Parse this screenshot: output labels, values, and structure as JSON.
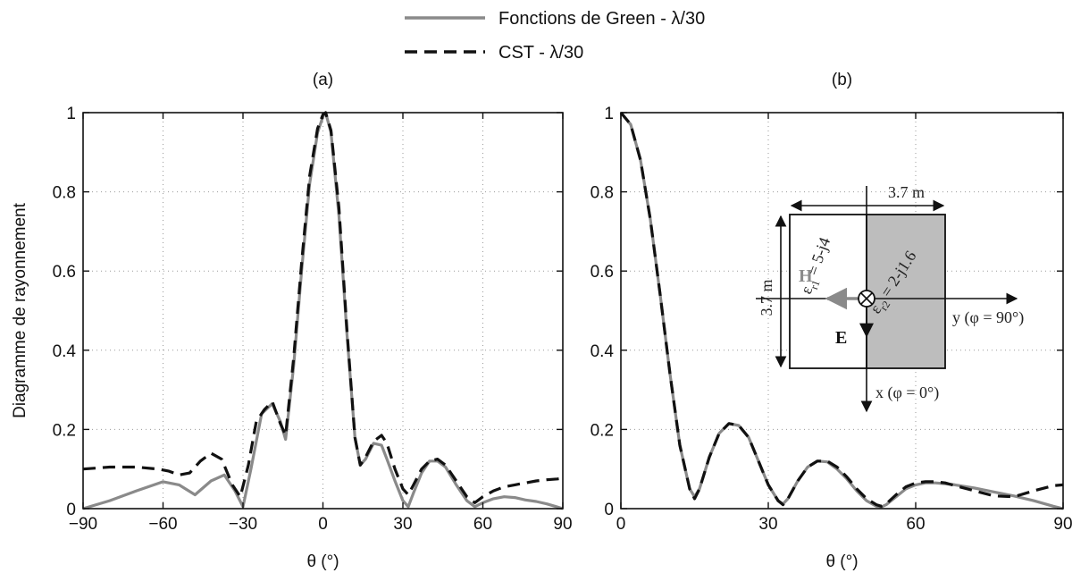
{
  "legend": [
    {
      "label": "Fonctions de Green - λ/30",
      "color": "#8a8a8a",
      "dash": "solid"
    },
    {
      "label": "CST - λ/30",
      "color": "#111111",
      "dash": "dashed"
    }
  ],
  "inset": {
    "dimension_top": "3.7 m",
    "dimension_left": "3.7 m",
    "eps1": "ε",
    "eps1_sub": "r1",
    "eps1_val": " = 5-j4",
    "eps2": "ε",
    "eps2_sub": "r2",
    "eps2_val": " = 2-j1.6",
    "h_label": "H",
    "e_label": "E",
    "y_axis": "y (φ = 90°)",
    "x_axis": "x (φ = 0°)",
    "left_fill": "#ffffff",
    "right_fill": "#bdbdbd"
  },
  "chart_data": [
    {
      "type": "line",
      "panel": "(a)",
      "xlabel": "θ (°)",
      "ylabel": "Diagramme de rayonnement",
      "xlim": [
        -90,
        90
      ],
      "ylim": [
        0,
        1
      ],
      "xticks": [
        -90,
        -60,
        -30,
        0,
        30,
        60,
        90
      ],
      "xtick_labels": [
        "−90",
        "−60",
        "−30",
        "0",
        "30",
        "60",
        "90"
      ],
      "yticks": [
        0,
        0.2,
        0.4,
        0.6,
        0.8,
        1
      ],
      "ytick_labels": [
        "0",
        "0.2",
        "0.4",
        "0.6",
        "0.8",
        "1"
      ],
      "grid": true,
      "series": [
        {
          "name": "Fonctions de Green - λ/30",
          "x": [
            -90,
            -80,
            -70,
            -60,
            -54,
            -48,
            -42,
            -37,
            -33,
            -30,
            -27,
            -23,
            -19,
            -16,
            -14,
            -11,
            -8,
            -5,
            -2,
            0,
            1,
            3,
            6,
            9,
            12,
            14,
            16,
            19,
            22,
            24,
            27,
            30,
            32,
            34,
            37,
            40,
            43,
            46,
            50,
            54,
            57,
            60,
            64,
            68,
            72,
            76,
            80,
            84,
            88,
            90
          ],
          "y": [
            0.0,
            0.02,
            0.045,
            0.068,
            0.06,
            0.035,
            0.07,
            0.085,
            0.045,
            0.005,
            0.1,
            0.24,
            0.265,
            0.22,
            0.175,
            0.36,
            0.6,
            0.82,
            0.95,
            0.99,
            1.0,
            0.95,
            0.74,
            0.44,
            0.18,
            0.11,
            0.125,
            0.165,
            0.16,
            0.125,
            0.07,
            0.02,
            0.005,
            0.04,
            0.09,
            0.12,
            0.12,
            0.105,
            0.06,
            0.02,
            0.005,
            0.015,
            0.025,
            0.03,
            0.028,
            0.022,
            0.018,
            0.012,
            0.004,
            0.0
          ],
          "color": "#8a8a8a",
          "dash": "solid"
        },
        {
          "name": "CST - λ/30",
          "x": [
            -90,
            -80,
            -70,
            -62,
            -58,
            -54,
            -50,
            -46,
            -42,
            -38,
            -34,
            -31,
            -28,
            -25,
            -22,
            -19,
            -16,
            -14,
            -11,
            -8,
            -5,
            -2,
            0,
            1,
            3,
            6,
            9,
            12,
            14,
            16,
            19,
            22,
            24,
            27,
            30,
            32,
            34,
            37,
            40,
            43,
            46,
            50,
            54,
            57,
            60,
            64,
            68,
            72,
            76,
            80,
            84,
            88,
            90
          ],
          "y": [
            0.1,
            0.105,
            0.105,
            0.1,
            0.095,
            0.085,
            0.09,
            0.12,
            0.14,
            0.125,
            0.06,
            0.03,
            0.11,
            0.22,
            0.25,
            0.27,
            0.215,
            0.185,
            0.38,
            0.62,
            0.84,
            0.96,
            0.995,
            1.0,
            0.955,
            0.76,
            0.45,
            0.18,
            0.11,
            0.13,
            0.17,
            0.185,
            0.165,
            0.1,
            0.05,
            0.035,
            0.06,
            0.1,
            0.12,
            0.125,
            0.11,
            0.07,
            0.03,
            0.015,
            0.03,
            0.045,
            0.055,
            0.06,
            0.065,
            0.07,
            0.073,
            0.075,
            0.077
          ],
          "color": "#111111",
          "dash": "dashed"
        }
      ]
    },
    {
      "type": "line",
      "panel": "(b)",
      "xlabel": "θ (°)",
      "ylabel": "",
      "xlim": [
        0,
        90
      ],
      "ylim": [
        0,
        1
      ],
      "xticks": [
        0,
        30,
        60,
        90
      ],
      "xtick_labels": [
        "0",
        "30",
        "60",
        "90"
      ],
      "yticks": [
        0,
        0.2,
        0.4,
        0.6,
        0.8,
        1
      ],
      "ytick_labels": [
        "0",
        "0.2",
        "0.4",
        "0.6",
        "0.8",
        "1"
      ],
      "grid": true,
      "series": [
        {
          "name": "Fonctions de Green - λ/30",
          "x": [
            0,
            2,
            4,
            6,
            8,
            10,
            12,
            14,
            15,
            16,
            18,
            20,
            22,
            24,
            26,
            28,
            30,
            32,
            33,
            34,
            36,
            38,
            40,
            42,
            44,
            46,
            48,
            50,
            52,
            53,
            54,
            56,
            58,
            60,
            62,
            64,
            66,
            68,
            72,
            76,
            80,
            84,
            88,
            90
          ],
          "y": [
            1.0,
            0.97,
            0.88,
            0.73,
            0.54,
            0.34,
            0.16,
            0.05,
            0.03,
            0.05,
            0.13,
            0.19,
            0.215,
            0.21,
            0.18,
            0.12,
            0.06,
            0.02,
            0.012,
            0.025,
            0.07,
            0.105,
            0.12,
            0.118,
            0.1,
            0.075,
            0.045,
            0.02,
            0.006,
            0.004,
            0.01,
            0.03,
            0.05,
            0.06,
            0.065,
            0.065,
            0.063,
            0.06,
            0.052,
            0.042,
            0.032,
            0.02,
            0.006,
            0.0
          ],
          "color": "#8a8a8a",
          "dash": "solid"
        },
        {
          "name": "CST - λ/30",
          "x": [
            0,
            2,
            4,
            6,
            8,
            10,
            12,
            14,
            15,
            16,
            18,
            20,
            22,
            24,
            26,
            28,
            30,
            32,
            33,
            34,
            36,
            38,
            40,
            42,
            44,
            46,
            48,
            50,
            52,
            53,
            54,
            56,
            58,
            60,
            62,
            64,
            66,
            68,
            72,
            76,
            80,
            84,
            88,
            90
          ],
          "y": [
            1.0,
            0.97,
            0.88,
            0.73,
            0.54,
            0.34,
            0.16,
            0.05,
            0.025,
            0.05,
            0.13,
            0.19,
            0.215,
            0.21,
            0.18,
            0.12,
            0.06,
            0.02,
            0.01,
            0.025,
            0.07,
            0.105,
            0.12,
            0.12,
            0.105,
            0.08,
            0.05,
            0.025,
            0.01,
            0.006,
            0.012,
            0.035,
            0.055,
            0.065,
            0.068,
            0.068,
            0.065,
            0.058,
            0.045,
            0.032,
            0.03,
            0.045,
            0.058,
            0.06
          ],
          "color": "#111111",
          "dash": "dashed"
        }
      ]
    }
  ]
}
